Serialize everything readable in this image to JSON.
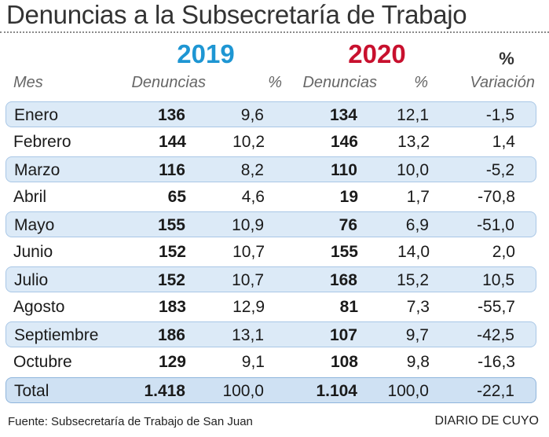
{
  "title": "Denuncias a la Subsecretaría de Trabajo",
  "years": {
    "y2019": "2019",
    "y2020": "2020"
  },
  "variation_pct_label": "%",
  "headers": {
    "mes": "Mes",
    "denuncias_2019": "Denuncias",
    "pct_2019": "%",
    "denuncias_2020": "Denuncias",
    "pct_2020": "%",
    "variacion": "Variación"
  },
  "rows": [
    {
      "mes": "Enero",
      "d2019": "136",
      "p2019": "9,6",
      "d2020": "134",
      "p2020": "12,1",
      "var": "-1,5"
    },
    {
      "mes": "Febrero",
      "d2019": "144",
      "p2019": "10,2",
      "d2020": "146",
      "p2020": "13,2",
      "var": "1,4"
    },
    {
      "mes": "Marzo",
      "d2019": "116",
      "p2019": "8,2",
      "d2020": "110",
      "p2020": "10,0",
      "var": "-5,2"
    },
    {
      "mes": "Abril",
      "d2019": "65",
      "p2019": "4,6",
      "d2020": "19",
      "p2020": "1,7",
      "var": "-70,8"
    },
    {
      "mes": "Mayo",
      "d2019": "155",
      "p2019": "10,9",
      "d2020": "76",
      "p2020": "6,9",
      "var": "-51,0"
    },
    {
      "mes": "Junio",
      "d2019": "152",
      "p2019": "10,7",
      "d2020": "155",
      "p2020": "14,0",
      "var": "2,0"
    },
    {
      "mes": "Julio",
      "d2019": "152",
      "p2019": "10,7",
      "d2020": "168",
      "p2020": "15,2",
      "var": "10,5"
    },
    {
      "mes": "Agosto",
      "d2019": "183",
      "p2019": "12,9",
      "d2020": "81",
      "p2020": "7,3",
      "var": "-55,7"
    },
    {
      "mes": "Septiembre",
      "d2019": "186",
      "p2019": "13,1",
      "d2020": "107",
      "p2020": "9,7",
      "var": "-42,5"
    },
    {
      "mes": "Octubre",
      "d2019": "129",
      "p2019": "9,1",
      "d2020": "108",
      "p2020": "9,8",
      "var": "-16,3"
    }
  ],
  "total": {
    "mes": "Total",
    "d2019": "1.418",
    "p2019": "100,0",
    "d2020": "1.104",
    "p2020": "100,0",
    "var": "-22,1"
  },
  "footer": {
    "source": "Fuente: Subsecretaría de Trabajo de San Juan",
    "brand": "DIARIO DE CUYO"
  },
  "colors": {
    "year_2019": "#1e96d3",
    "year_2020": "#c8102e",
    "row_shade": "#dceaf7",
    "row_border": "#a9c7e6"
  }
}
